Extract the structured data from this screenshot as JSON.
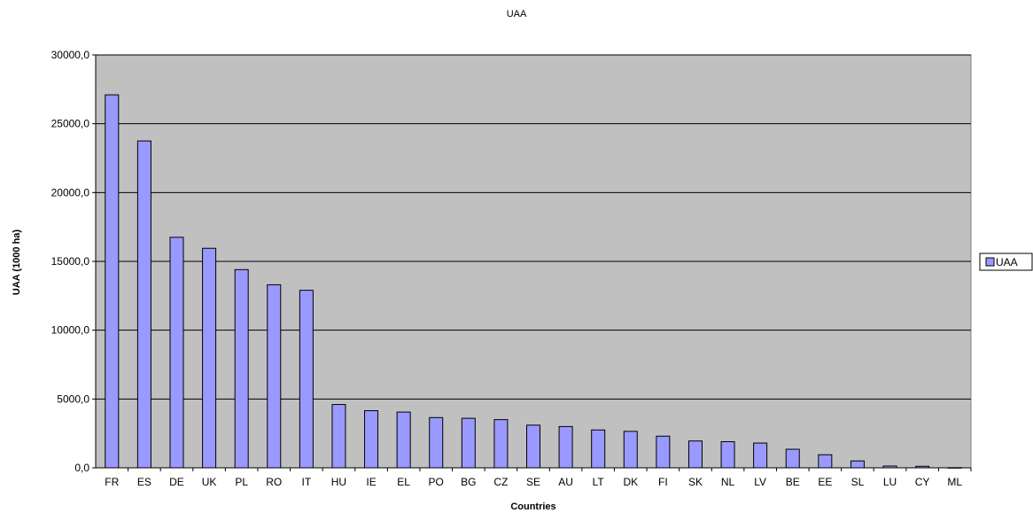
{
  "chart_data": {
    "type": "bar",
    "title": "UAA",
    "xlabel": "Countries",
    "ylabel": "UAA (1000 ha)",
    "ylim": [
      0,
      30000
    ],
    "y_ticks": [
      "0,0",
      "5000,0",
      "10000,0",
      "15000,0",
      "20000,0",
      "25000,0",
      "30000,0"
    ],
    "y_tick_values": [
      0,
      5000,
      10000,
      15000,
      20000,
      25000,
      30000
    ],
    "grid": true,
    "legend_position": "right",
    "categories": [
      "FR",
      "ES",
      "DE",
      "UK",
      "PL",
      "RO",
      "IT",
      "HU",
      "IE",
      "EL",
      "PO",
      "BG",
      "CZ",
      "SE",
      "AU",
      "LT",
      "DK",
      "FI",
      "SK",
      "NL",
      "LV",
      "BE",
      "EE",
      "SL",
      "LU",
      "CY",
      "ML"
    ],
    "series": [
      {
        "name": "UAA",
        "color": "#9999ff",
        "values": [
          27100,
          23750,
          16750,
          15950,
          14400,
          13300,
          12900,
          4600,
          4150,
          4050,
          3650,
          3600,
          3500,
          3100,
          3000,
          2750,
          2650,
          2300,
          1950,
          1900,
          1800,
          1350,
          950,
          500,
          130,
          110,
          10
        ]
      }
    ],
    "colors": {
      "plot_background": "#c0c0c0",
      "gridline": "#000000",
      "bar_fill": "#9999ff",
      "bar_stroke": "#000000"
    }
  }
}
